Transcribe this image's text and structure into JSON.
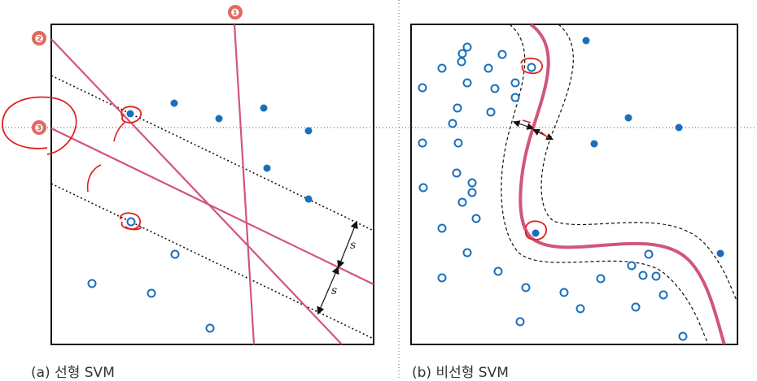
{
  "captions": {
    "left": "(a) 선형 SVM",
    "right": "(b) 비선형 SVM"
  },
  "badges": [
    "❶",
    "❷",
    "❸"
  ],
  "margin_labels": [
    "s",
    "s"
  ],
  "colors": {
    "point": "#1a6fba",
    "boundary": "#d2567a",
    "annotation": "#e02020",
    "frame": "#111111"
  }
}
